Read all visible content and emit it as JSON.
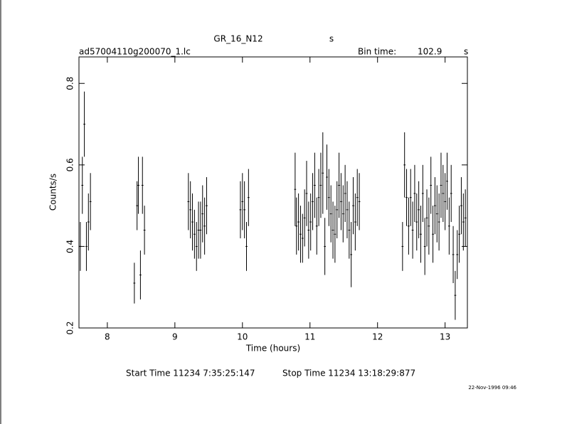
{
  "chart_data": {
    "type": "errorbar",
    "title": "GR_16_N12",
    "title_unit": "s",
    "file_name": "ad57004110g200070_1.lc",
    "bin_time_label": "Bin time:",
    "bin_time": 102.9,
    "bin_time_unit": "s",
    "x_label": "Time (hours)",
    "y_label": "Counts/s",
    "start_time": "Start Time 11234  7:35:25:147",
    "stop_time": "Stop Time 11234 13:18:29:877",
    "timestamp": "22-Nov-1996 09:46",
    "color": "#000000",
    "xlim": [
      7.58,
      13.33
    ],
    "xticks": [
      8,
      9,
      10,
      11,
      12,
      13
    ],
    "ylim": [
      0.2,
      0.865
    ],
    "yticks": [
      0.2,
      0.4,
      0.6,
      0.8
    ],
    "x": [
      7.6,
      7.63,
      7.66,
      7.69,
      7.72,
      7.75,
      8.4,
      8.44,
      8.46,
      8.49,
      8.52,
      8.55,
      9.2,
      9.23,
      9.26,
      9.29,
      9.32,
      9.35,
      9.38,
      9.41,
      9.44,
      9.47,
      9.97,
      10.0,
      10.03,
      10.06,
      10.09,
      10.78,
      10.8,
      10.83,
      10.86,
      10.89,
      10.92,
      10.95,
      10.98,
      11.01,
      11.04,
      11.07,
      11.1,
      11.13,
      11.16,
      11.19,
      11.22,
      11.25,
      11.28,
      11.31,
      11.34,
      11.37,
      11.4,
      11.43,
      11.46,
      11.49,
      11.52,
      11.55,
      11.58,
      11.61,
      11.64,
      11.67,
      11.7,
      11.73,
      12.37,
      12.4,
      12.43,
      12.46,
      12.49,
      12.52,
      12.55,
      12.58,
      12.61,
      12.64,
      12.67,
      12.7,
      12.73,
      12.76,
      12.79,
      12.82,
      12.85,
      12.88,
      12.91,
      12.94,
      12.97,
      13.0,
      13.03,
      13.06,
      13.09,
      13.12,
      13.15,
      13.18,
      13.21,
      13.24,
      13.27,
      13.3
    ],
    "values": [
      0.4,
      0.55,
      0.7,
      0.4,
      0.46,
      0.51,
      0.31,
      0.5,
      0.55,
      0.33,
      0.55,
      0.44,
      0.51,
      0.49,
      0.46,
      0.43,
      0.4,
      0.44,
      0.44,
      0.48,
      0.45,
      0.5,
      0.49,
      0.51,
      0.49,
      0.4,
      0.52,
      0.54,
      0.45,
      0.46,
      0.43,
      0.42,
      0.47,
      0.53,
      0.44,
      0.46,
      0.51,
      0.55,
      0.45,
      0.52,
      0.55,
      0.58,
      0.4,
      0.57,
      0.52,
      0.48,
      0.44,
      0.43,
      0.49,
      0.55,
      0.51,
      0.48,
      0.53,
      0.49,
      0.44,
      0.38,
      0.5,
      0.46,
      0.52,
      0.51,
      0.4,
      0.6,
      0.52,
      0.45,
      0.52,
      0.44,
      0.53,
      0.46,
      0.49,
      0.43,
      0.53,
      0.4,
      0.47,
      0.45,
      0.55,
      0.43,
      0.5,
      0.48,
      0.46,
      0.55,
      0.53,
      0.51,
      0.56,
      0.45,
      0.53,
      0.38,
      0.28,
      0.38,
      0.43,
      0.5,
      0.46,
      0.47
    ],
    "errors": [
      0.06,
      0.07,
      0.08,
      0.06,
      0.07,
      0.07,
      0.05,
      0.06,
      0.07,
      0.06,
      0.07,
      0.06,
      0.07,
      0.07,
      0.07,
      0.06,
      0.06,
      0.07,
      0.07,
      0.07,
      0.07,
      0.07,
      0.07,
      0.07,
      0.07,
      0.06,
      0.07,
      0.09,
      0.07,
      0.07,
      0.07,
      0.06,
      0.07,
      0.08,
      0.07,
      0.07,
      0.07,
      0.08,
      0.07,
      0.07,
      0.08,
      0.1,
      0.07,
      0.08,
      0.07,
      0.07,
      0.07,
      0.07,
      0.07,
      0.08,
      0.07,
      0.07,
      0.07,
      0.07,
      0.07,
      0.08,
      0.07,
      0.07,
      0.07,
      0.07,
      0.06,
      0.08,
      0.07,
      0.07,
      0.07,
      0.07,
      0.07,
      0.07,
      0.07,
      0.07,
      0.07,
      0.07,
      0.07,
      0.07,
      0.07,
      0.07,
      0.07,
      0.07,
      0.07,
      0.08,
      0.07,
      0.07,
      0.07,
      0.07,
      0.07,
      0.07,
      0.06,
      0.06,
      0.07,
      0.07,
      0.07,
      0.07
    ]
  }
}
